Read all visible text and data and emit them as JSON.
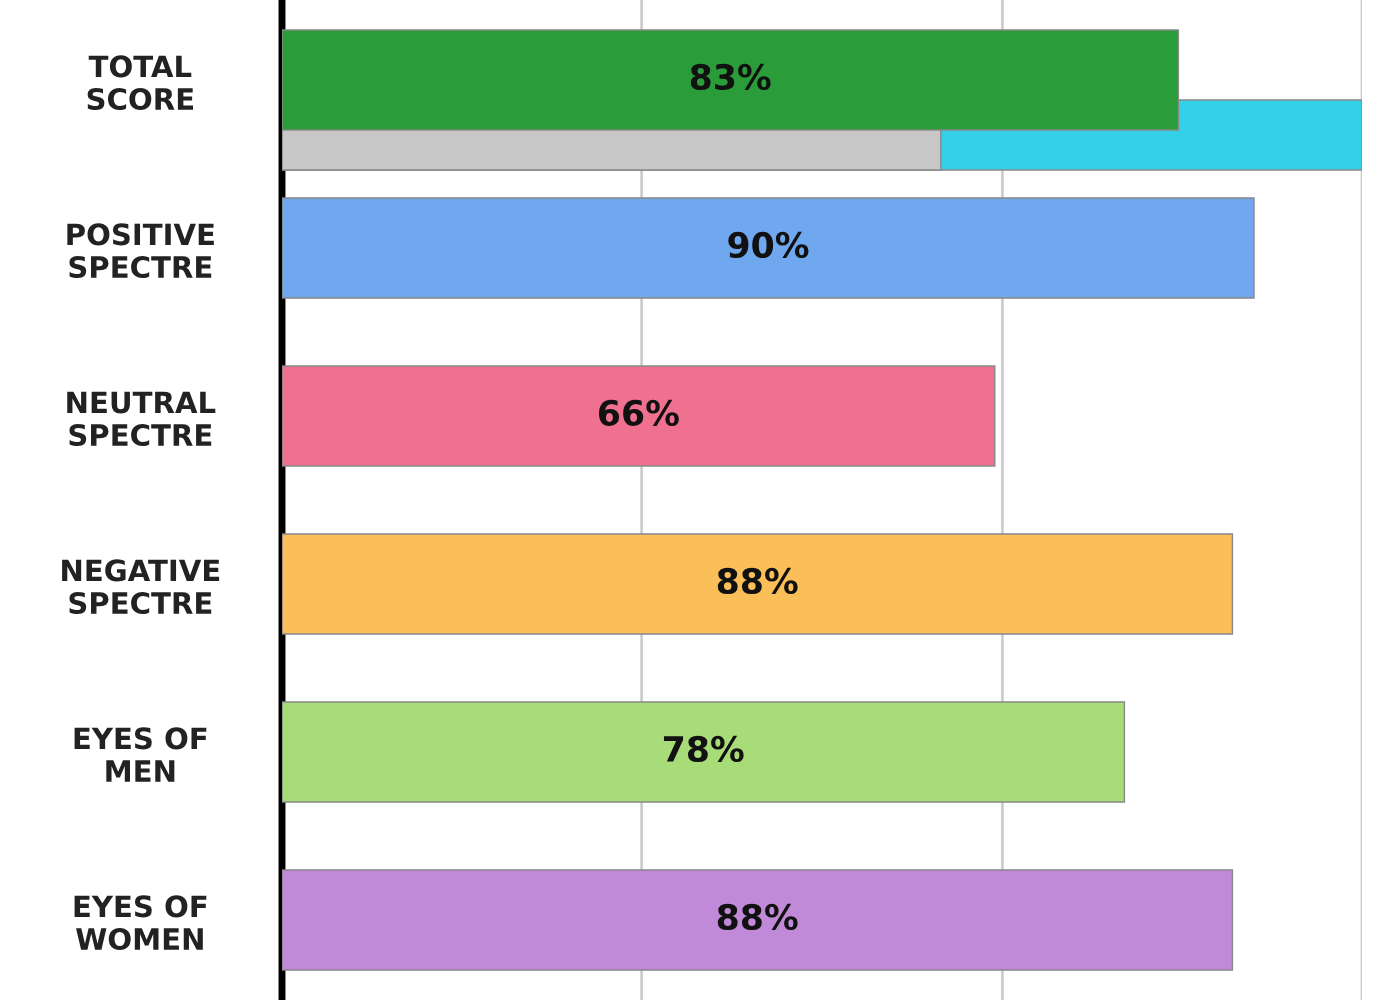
{
  "chart_data": {
    "type": "bar",
    "orientation": "horizontal",
    "categories": [
      "TOTAL\nSCORE",
      "POSITIVE\nSPECTRE",
      "NEUTRAL\nSPECTRE",
      "NEGATIVE\nSPECTRE",
      "EYES OF\nMEN",
      "EYES OF\nWOMEN"
    ],
    "series": [
      {
        "values": [
          100,
          null,
          null,
          null,
          null,
          null
        ],
        "color": "#33d0e8"
      },
      {
        "values": [
          61,
          null,
          null,
          null,
          null,
          null
        ],
        "color": "#c8c8c8"
      },
      {
        "values": [
          83,
          90,
          66,
          88,
          78,
          88
        ],
        "colors": [
          "#2a9d3a",
          "#6fa8ee",
          "#f07090",
          "#fbbf5a",
          "#a8dc78",
          "#c08ad8"
        ],
        "value_labels": [
          "83%",
          "90%",
          "66%",
          "88%",
          "78%",
          "88%"
        ]
      }
    ],
    "xlim": [
      0,
      100
    ],
    "ref_lines": [
      {
        "axis": "x",
        "value": 33.3,
        "color": "#cccccc"
      },
      {
        "axis": "x",
        "value": 66.7,
        "color": "#cccccc"
      },
      {
        "axis": "x",
        "value": 100,
        "color": "#cccccc"
      }
    ],
    "tick_labels": "y",
    "legend": false
  }
}
